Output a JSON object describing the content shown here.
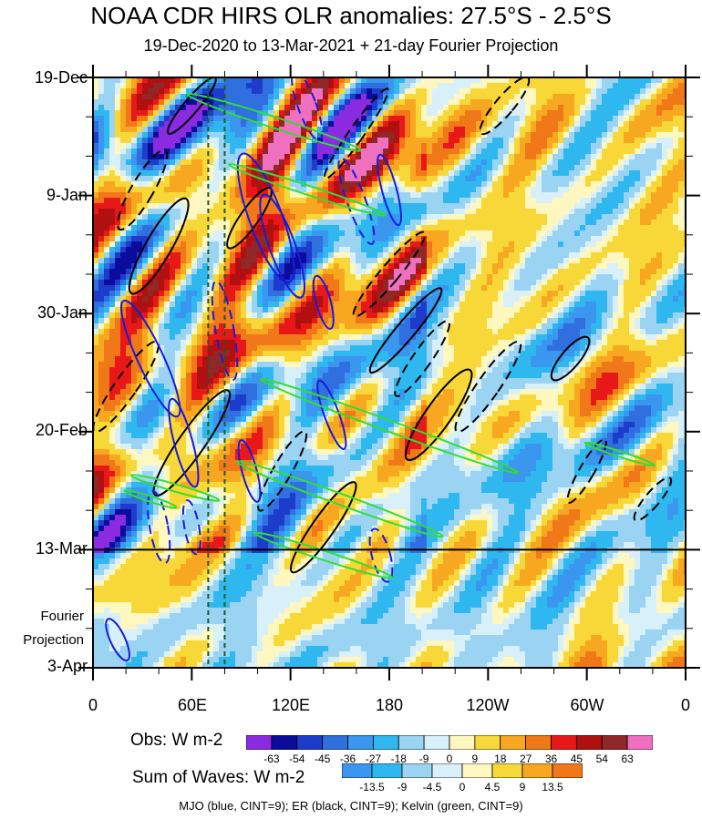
{
  "chart_data": {
    "type": "heatmap",
    "title": "NOAA CDR HIRS OLR anomalies: 27.5°S - 2.5°S",
    "subtitle": "19-Dec-2020 to 13-Mar-2021 + 21-day Fourier Projection",
    "x_axis": {
      "tick_labels": [
        "0",
        "60E",
        "120E",
        "180",
        "120W",
        "60W",
        "0"
      ],
      "longitudes": [
        0,
        60,
        120,
        180,
        240,
        300,
        360
      ],
      "range": [
        0,
        360
      ]
    },
    "y_axis": {
      "tick_labels": [
        "19-Dec",
        "9-Jan",
        "30-Jan",
        "20-Feb",
        "13-Mar",
        "3-Apr"
      ],
      "day_offsets": [
        0,
        21,
        42,
        63,
        84,
        105
      ],
      "range_days": [
        0,
        105
      ],
      "projection_label_line1": "Fourier",
      "projection_label_line2": "Projection",
      "observation_end_day": 84
    },
    "obs_colorbar": {
      "label": "Obs: W m-2",
      "levels": [
        "-63",
        "-54",
        "-45",
        "-36",
        "-27",
        "-18",
        "-9",
        "0",
        "9",
        "18",
        "27",
        "36",
        "45",
        "54",
        "63"
      ],
      "colors": [
        "#8a2be2",
        "#0c0c9c",
        "#1e3ccc",
        "#2f6fe0",
        "#3a96ee",
        "#2fb8f0",
        "#9ad4f2",
        "#d8f0fa",
        "#fff7c0",
        "#f8d838",
        "#f8a820",
        "#f07818",
        "#e81818",
        "#b01010",
        "#902828",
        "#f070c0"
      ]
    },
    "waves_colorbar": {
      "label": "Sum of Waves: W m-2",
      "levels": [
        "-13.5",
        "-9",
        "-4.5",
        "0",
        "4.5",
        "9",
        "13.5"
      ],
      "colors": [
        "#3a96ee",
        "#2fb8f0",
        "#9ad4f2",
        "#d8f0fa",
        "#fff7c0",
        "#f8d838",
        "#f8a820",
        "#f07818"
      ]
    },
    "contour_legend": "MJO (blue, CINT=9); ER (black, CINT=9); Kelvin (green, CINT=9)",
    "series": [
      {
        "name": "MJO",
        "color": "#1a1adc",
        "cint": 9
      },
      {
        "name": "ER",
        "color": "#000000",
        "cint": 9
      },
      {
        "name": "Kelvin",
        "color": "#33dd33",
        "cint": 9
      }
    ],
    "reference_lines_longitude": [
      70,
      80
    ]
  }
}
